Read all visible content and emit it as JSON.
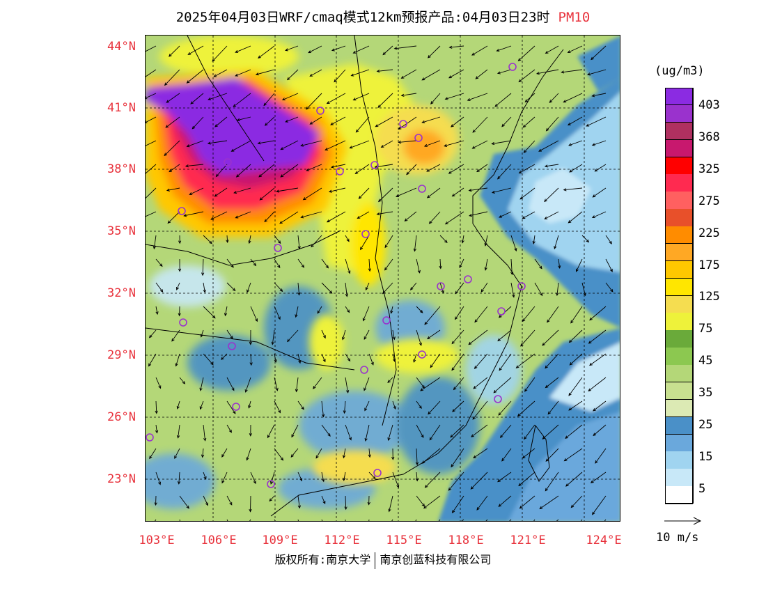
{
  "title": {
    "main": "2025年04月03日WRF/cmaq模式12km预报产品:04月03日23时",
    "variable": "PM10"
  },
  "axes": {
    "lat_labels": [
      "44°N",
      "41°N",
      "38°N",
      "35°N",
      "32°N",
      "29°N",
      "26°N",
      "23°N"
    ],
    "lon_labels": [
      "103°E",
      "106°E",
      "109°E",
      "112°E",
      "115°E",
      "118°E",
      "121°E",
      "124°E"
    ]
  },
  "legend": {
    "units": "(ug/m3)",
    "labels": [
      "403",
      "368",
      "325",
      "275",
      "225",
      "175",
      "125",
      "75",
      "45",
      "35",
      "25",
      "15",
      "5"
    ],
    "colors": [
      "#8b2be2",
      "#9a32cd",
      "#b03060",
      "#c8186e",
      "#ff0000",
      "#ff2a50",
      "#ff6060",
      "#e8502a",
      "#ff8c00",
      "#ffa824",
      "#ffc800",
      "#ffe600",
      "#f5dd50",
      "#eef23a",
      "#6aaa3a",
      "#8cc850",
      "#b4d778",
      "#c8e090",
      "#dceab4",
      "#4a90c8",
      "#6aa8dc",
      "#a0d4f0",
      "#c8e8f8",
      "#ffffff"
    ]
  },
  "vector_ref": {
    "label": "10 m/s"
  },
  "credit": {
    "left": "版权所有:南京大学",
    "right": "南京创蓝科技有限公司"
  },
  "map_colors": {
    "sea": "#8ccbe8",
    "deep_sea": "#4a90c8",
    "land_low": "#b4d778",
    "land_mid": "#dceab4",
    "dust_core": "#8b2be2"
  }
}
